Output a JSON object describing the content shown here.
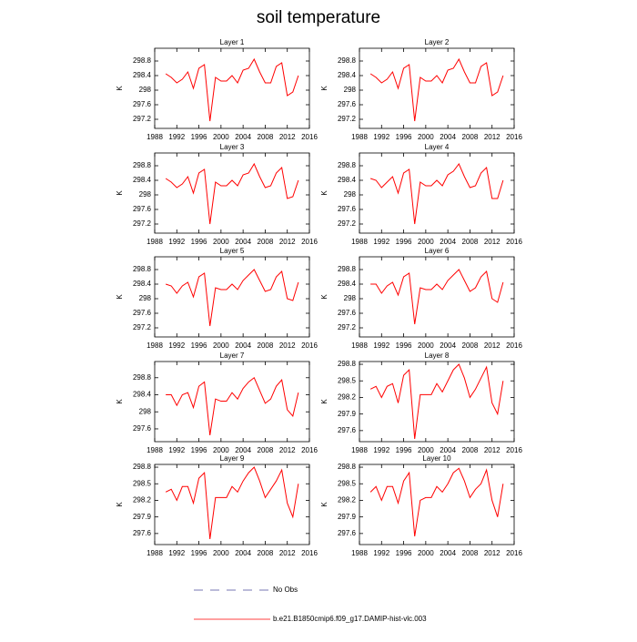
{
  "title": "soil temperature",
  "legend": [
    {
      "label": "No Obs",
      "color": "#4b4b9a",
      "dash": true
    },
    {
      "label": "b.e21.B1850cmip6.f09_g17.DAMIP-hist-vlc.003",
      "color": "#ff0000",
      "dash": false
    }
  ],
  "chart_data": [
    {
      "type": "line",
      "title": "Layer 1",
      "y_label": "K",
      "x": [
        1990,
        1991,
        1992,
        1993,
        1994,
        1995,
        1996,
        1997,
        1998,
        1999,
        2000,
        2001,
        2002,
        2003,
        2004,
        2005,
        2006,
        2007,
        2008,
        2009,
        2010,
        2011,
        2012,
        2013,
        2014
      ],
      "xlim": [
        1988,
        2016
      ],
      "xticks": [
        1988,
        1992,
        1996,
        2000,
        2004,
        2008,
        2012,
        2016
      ],
      "ylim": [
        296.95,
        299.15
      ],
      "yticks": [
        297.2,
        297.6,
        298.0,
        298.4,
        298.8
      ],
      "series": [
        {
          "color": "#ff0000",
          "values": [
            298.45,
            298.35,
            298.2,
            298.3,
            298.5,
            298.05,
            298.6,
            298.7,
            297.15,
            298.35,
            298.25,
            298.25,
            298.4,
            298.2,
            298.55,
            298.6,
            298.85,
            298.5,
            298.2,
            298.2,
            298.65,
            298.75,
            297.85,
            297.95,
            298.4
          ]
        }
      ]
    },
    {
      "type": "line",
      "title": "Layer 2",
      "y_label": "K",
      "x": [
        1990,
        1991,
        1992,
        1993,
        1994,
        1995,
        1996,
        1997,
        1998,
        1999,
        2000,
        2001,
        2002,
        2003,
        2004,
        2005,
        2006,
        2007,
        2008,
        2009,
        2010,
        2011,
        2012,
        2013,
        2014
      ],
      "xlim": [
        1988,
        2016
      ],
      "xticks": [
        1988,
        1992,
        1996,
        2000,
        2004,
        2008,
        2012,
        2016
      ],
      "ylim": [
        296.95,
        299.15
      ],
      "yticks": [
        297.2,
        297.6,
        298.0,
        298.4,
        298.8
      ],
      "series": [
        {
          "color": "#ff0000",
          "values": [
            298.45,
            298.35,
            298.2,
            298.3,
            298.5,
            298.05,
            298.6,
            298.7,
            297.15,
            298.35,
            298.25,
            298.25,
            298.4,
            298.2,
            298.55,
            298.6,
            298.85,
            298.5,
            298.2,
            298.2,
            298.65,
            298.75,
            297.85,
            297.95,
            298.4
          ]
        }
      ]
    },
    {
      "type": "line",
      "title": "Layer 3",
      "y_label": "K",
      "x": [
        1990,
        1991,
        1992,
        1993,
        1994,
        1995,
        1996,
        1997,
        1998,
        1999,
        2000,
        2001,
        2002,
        2003,
        2004,
        2005,
        2006,
        2007,
        2008,
        2009,
        2010,
        2011,
        2012,
        2013,
        2014
      ],
      "xlim": [
        1988,
        2016
      ],
      "xticks": [
        1988,
        1992,
        1996,
        2000,
        2004,
        2008,
        2012,
        2016
      ],
      "ylim": [
        296.95,
        299.15
      ],
      "yticks": [
        297.2,
        297.6,
        298.0,
        298.4,
        298.8
      ],
      "series": [
        {
          "color": "#ff0000",
          "values": [
            298.45,
            298.35,
            298.2,
            298.3,
            298.5,
            298.05,
            298.6,
            298.7,
            297.2,
            298.35,
            298.25,
            298.25,
            298.4,
            298.25,
            298.55,
            298.6,
            298.85,
            298.5,
            298.2,
            298.25,
            298.6,
            298.75,
            297.9,
            297.95,
            298.4
          ]
        }
      ]
    },
    {
      "type": "line",
      "title": "Layer 4",
      "y_label": "K",
      "x": [
        1990,
        1991,
        1992,
        1993,
        1994,
        1995,
        1996,
        1997,
        1998,
        1999,
        2000,
        2001,
        2002,
        2003,
        2004,
        2005,
        2006,
        2007,
        2008,
        2009,
        2010,
        2011,
        2012,
        2013,
        2014
      ],
      "xlim": [
        1988,
        2016
      ],
      "xticks": [
        1988,
        1992,
        1996,
        2000,
        2004,
        2008,
        2012,
        2016
      ],
      "ylim": [
        296.95,
        299.15
      ],
      "yticks": [
        297.2,
        297.6,
        298.0,
        298.4,
        298.8
      ],
      "series": [
        {
          "color": "#ff0000",
          "values": [
            298.45,
            298.4,
            298.2,
            298.35,
            298.5,
            298.05,
            298.6,
            298.7,
            297.2,
            298.35,
            298.25,
            298.25,
            298.4,
            298.25,
            298.55,
            298.65,
            298.85,
            298.5,
            298.2,
            298.25,
            298.6,
            298.75,
            297.9,
            297.9,
            298.4
          ]
        }
      ]
    },
    {
      "type": "line",
      "title": "Layer 5",
      "y_label": "K",
      "x": [
        1990,
        1991,
        1992,
        1993,
        1994,
        1995,
        1996,
        1997,
        1998,
        1999,
        2000,
        2001,
        2002,
        2003,
        2004,
        2005,
        2006,
        2007,
        2008,
        2009,
        2010,
        2011,
        2012,
        2013,
        2014
      ],
      "xlim": [
        1988,
        2016
      ],
      "xticks": [
        1988,
        1992,
        1996,
        2000,
        2004,
        2008,
        2012,
        2016
      ],
      "ylim": [
        296.95,
        299.15
      ],
      "yticks": [
        297.2,
        297.6,
        298.0,
        298.4,
        298.8
      ],
      "series": [
        {
          "color": "#ff0000",
          "values": [
            298.4,
            298.35,
            298.15,
            298.35,
            298.45,
            298.05,
            298.6,
            298.7,
            297.25,
            298.3,
            298.25,
            298.25,
            298.4,
            298.25,
            298.5,
            298.65,
            298.8,
            298.5,
            298.2,
            298.25,
            298.6,
            298.75,
            298.0,
            297.95,
            298.45
          ]
        }
      ]
    },
    {
      "type": "line",
      "title": "Layer 6",
      "y_label": "K",
      "x": [
        1990,
        1991,
        1992,
        1993,
        1994,
        1995,
        1996,
        1997,
        1998,
        1999,
        2000,
        2001,
        2002,
        2003,
        2004,
        2005,
        2006,
        2007,
        2008,
        2009,
        2010,
        2011,
        2012,
        2013,
        2014
      ],
      "xlim": [
        1988,
        2016
      ],
      "xticks": [
        1988,
        1992,
        1996,
        2000,
        2004,
        2008,
        2012,
        2016
      ],
      "ylim": [
        296.95,
        299.15
      ],
      "yticks": [
        297.2,
        297.6,
        298.0,
        298.4,
        298.8
      ],
      "series": [
        {
          "color": "#ff0000",
          "values": [
            298.4,
            298.4,
            298.15,
            298.35,
            298.45,
            298.1,
            298.6,
            298.7,
            297.3,
            298.3,
            298.25,
            298.25,
            298.4,
            298.25,
            298.5,
            298.65,
            298.8,
            298.5,
            298.2,
            298.3,
            298.6,
            298.75,
            298.0,
            297.9,
            298.45
          ]
        }
      ]
    },
    {
      "type": "line",
      "title": "Layer 7",
      "y_label": "K",
      "x": [
        1990,
        1991,
        1992,
        1993,
        1994,
        1995,
        1996,
        1997,
        1998,
        1999,
        2000,
        2001,
        2002,
        2003,
        2004,
        2005,
        2006,
        2007,
        2008,
        2009,
        2010,
        2011,
        2012,
        2013,
        2014
      ],
      "xlim": [
        1988,
        2016
      ],
      "xticks": [
        1988,
        1992,
        1996,
        2000,
        2004,
        2008,
        2012,
        2016
      ],
      "ylim": [
        297.3,
        299.18
      ],
      "yticks": [
        297.6,
        298.0,
        298.4,
        298.8
      ],
      "series": [
        {
          "color": "#ff0000",
          "values": [
            298.4,
            298.4,
            298.15,
            298.4,
            298.45,
            298.1,
            298.6,
            298.7,
            297.45,
            298.3,
            298.25,
            298.25,
            298.45,
            298.3,
            298.55,
            298.7,
            298.8,
            298.5,
            298.2,
            298.3,
            298.6,
            298.75,
            298.05,
            297.9,
            298.45
          ]
        }
      ]
    },
    {
      "type": "line",
      "title": "Layer 8",
      "y_label": "K",
      "x": [
        1990,
        1991,
        1992,
        1993,
        1994,
        1995,
        1996,
        1997,
        1998,
        1999,
        2000,
        2001,
        2002,
        2003,
        2004,
        2005,
        2006,
        2007,
        2008,
        2009,
        2010,
        2011,
        2012,
        2013,
        2014
      ],
      "xlim": [
        1988,
        2016
      ],
      "xticks": [
        1988,
        1992,
        1996,
        2000,
        2004,
        2008,
        2012,
        2016
      ],
      "ylim": [
        297.4,
        298.85
      ],
      "yticks": [
        297.6,
        297.9,
        298.2,
        298.5,
        298.8
      ],
      "series": [
        {
          "color": "#ff0000",
          "values": [
            298.35,
            298.4,
            298.2,
            298.4,
            298.45,
            298.1,
            298.6,
            298.7,
            297.45,
            298.25,
            298.25,
            298.25,
            298.45,
            298.3,
            298.5,
            298.7,
            298.8,
            298.55,
            298.2,
            298.35,
            298.55,
            298.75,
            298.1,
            297.9,
            298.5
          ]
        }
      ]
    },
    {
      "type": "line",
      "title": "Layer 9",
      "y_label": "K",
      "x": [
        1990,
        1991,
        1992,
        1993,
        1994,
        1995,
        1996,
        1997,
        1998,
        1999,
        2000,
        2001,
        2002,
        2003,
        2004,
        2005,
        2006,
        2007,
        2008,
        2009,
        2010,
        2011,
        2012,
        2013,
        2014
      ],
      "xlim": [
        1988,
        2016
      ],
      "xticks": [
        1988,
        1992,
        1996,
        2000,
        2004,
        2008,
        2012,
        2016
      ],
      "ylim": [
        297.4,
        298.85
      ],
      "yticks": [
        297.6,
        297.9,
        298.2,
        298.5,
        298.8
      ],
      "series": [
        {
          "color": "#ff0000",
          "values": [
            298.35,
            298.4,
            298.2,
            298.45,
            298.45,
            298.15,
            298.6,
            298.7,
            297.5,
            298.25,
            298.25,
            298.25,
            298.45,
            298.35,
            298.55,
            298.7,
            298.8,
            298.55,
            298.25,
            298.4,
            298.55,
            298.75,
            298.15,
            297.9,
            298.5
          ]
        }
      ]
    },
    {
      "type": "line",
      "title": "Layer 10",
      "y_label": "K",
      "x": [
        1990,
        1991,
        1992,
        1993,
        1994,
        1995,
        1996,
        1997,
        1998,
        1999,
        2000,
        2001,
        2002,
        2003,
        2004,
        2005,
        2006,
        2007,
        2008,
        2009,
        2010,
        2011,
        2012,
        2013,
        2014
      ],
      "xlim": [
        1988,
        2016
      ],
      "xticks": [
        1988,
        1992,
        1996,
        2000,
        2004,
        2008,
        2012,
        2016
      ],
      "ylim": [
        297.4,
        298.85
      ],
      "yticks": [
        297.6,
        297.9,
        298.2,
        298.5,
        298.8
      ],
      "series": [
        {
          "color": "#ff0000",
          "values": [
            298.35,
            298.45,
            298.2,
            298.45,
            298.45,
            298.15,
            298.55,
            298.7,
            297.55,
            298.2,
            298.25,
            298.25,
            298.45,
            298.35,
            298.5,
            298.7,
            298.78,
            298.55,
            298.25,
            298.4,
            298.5,
            298.75,
            298.2,
            297.9,
            298.5
          ]
        }
      ]
    }
  ]
}
